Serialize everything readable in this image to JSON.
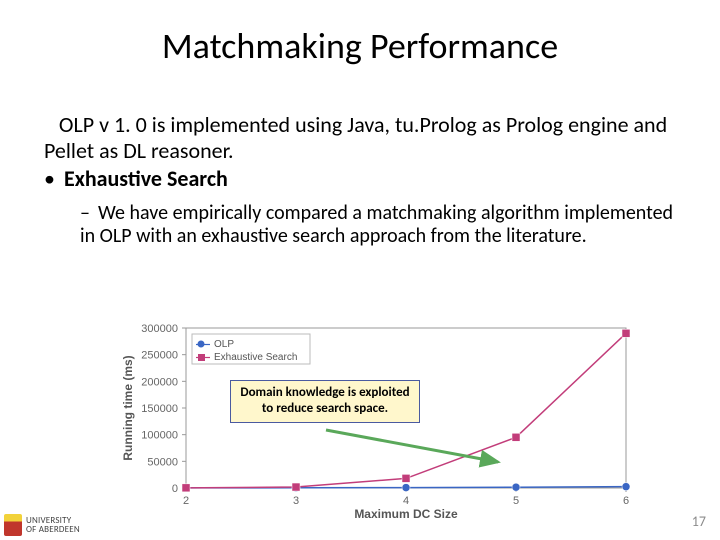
{
  "slide": {
    "title": "Matchmaking Performance",
    "para1": "OLP v 1. 0 is implemented using Java, tu.Prolog as Prolog engine and Pellet as DL reasoner.",
    "bullet1_label": "Exhaustive Search",
    "sub1": "We have empirically compared a matchmaking algorithm implemented in OLP with an exhaustive search approach from the literature.",
    "callout": "Domain knowledge is exploited to reduce search space."
  },
  "chart": {
    "type": "line",
    "x": [
      2,
      3,
      4,
      5,
      6
    ],
    "xlim": [
      2,
      6
    ],
    "ylim": [
      0,
      300000
    ],
    "ytick_step": 50000,
    "series": [
      {
        "name": "OLP",
        "color": "#3a66c4",
        "marker": "circle",
        "y": [
          200,
          400,
          800,
          1500,
          2500
        ]
      },
      {
        "name": "Exhaustive Search",
        "color": "#c23d7a",
        "marker": "square",
        "y": [
          300,
          1800,
          18000,
          95000,
          290000
        ]
      }
    ],
    "xlabel": "Maximum DC Size",
    "ylabel": "Running time (ms)",
    "axis_color": "#999999",
    "grid_color": "#e0e0e0",
    "background_color": "#ffffff",
    "tick_fontsize": 11,
    "label_fontsize": 12,
    "line_width": 1.5,
    "marker_size": 4
  },
  "callout_style": {
    "bg": "#fff7cc",
    "border": "#4a5aa0",
    "arrow": "#5aa85a"
  },
  "footer": {
    "logo_line1": "UNIVERSITY",
    "logo_line2": "OF ABERDEEN",
    "crest_bg": "#c0362c",
    "crest_accent": "#f2d23a",
    "page": "17"
  }
}
